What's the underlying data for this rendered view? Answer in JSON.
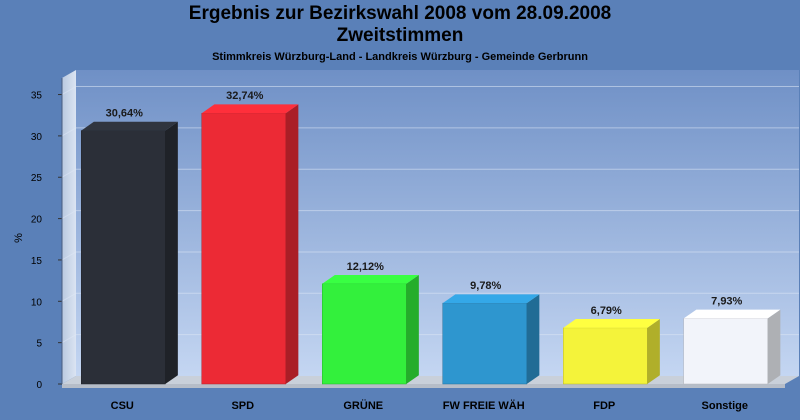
{
  "chart_title": "Ergebnis zur Bezirkswahl 2008 vom 28.09.2008",
  "chart_title_2": "Zweitstimmen",
  "chart_subtitle": "Stimmkreis Würzburg-Land - Landkreis Würzburg - Gemeinde Gerbrunn",
  "chart_data": {
    "type": "bar",
    "title": "Ergebnis zur Bezirkswahl 2008 vom 28.09.2008",
    "subtitle": "Stimmkreis Würzburg-Land - Landkreis Würzburg - Gemeinde Gerbrunn",
    "xlabel": "",
    "ylabel": "%",
    "ylim": [
      0,
      37
    ],
    "yticks": [
      0,
      5,
      10,
      15,
      20,
      25,
      30,
      35
    ],
    "grid": true,
    "categories": [
      "CSU",
      "SPD",
      "GRÜNE",
      "FW FREIE WÄH",
      "FDP",
      "Sonstige"
    ],
    "values": [
      30.64,
      32.74,
      12.12,
      9.78,
      6.79,
      7.93
    ],
    "value_labels": [
      "30,64%",
      "32,74%",
      "12,12%",
      "9,78%",
      "6,79%",
      "7,93%"
    ],
    "colors": [
      "#2b2f38",
      "#ec2a35",
      "#33f03c",
      "#2e96cf",
      "#f4f33a",
      "#f2f4fa"
    ]
  }
}
